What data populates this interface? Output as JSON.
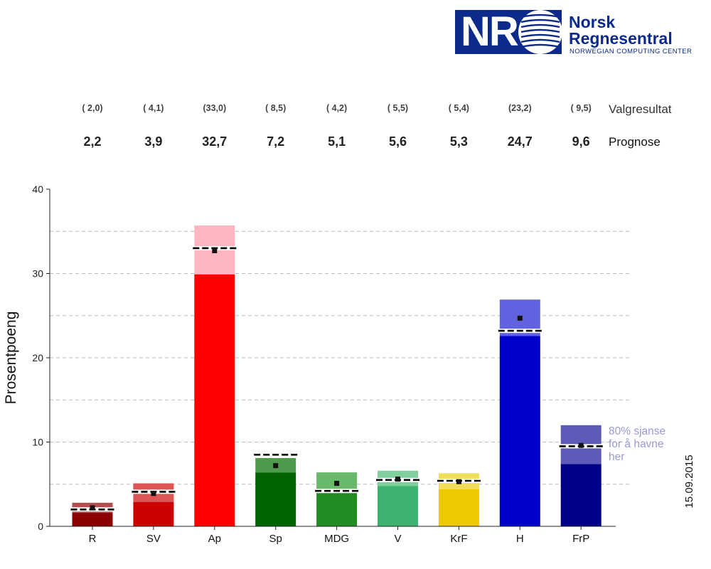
{
  "logo": {
    "mark": "NR",
    "name_line1": "Norsk",
    "name_line2": "Regnesentral",
    "subtitle": "NORWEGIAN COMPUTING CENTER",
    "color": "#0b2a8c"
  },
  "chart_data": {
    "type": "bar",
    "categories": [
      "R",
      "SV",
      "Ap",
      "Sp",
      "MDG",
      "V",
      "KrF",
      "H",
      "FrP"
    ],
    "result_labels": [
      "( 2,0)",
      "( 4,1)",
      "(33,0)",
      "( 8,5)",
      "( 4,2)",
      "( 5,5)",
      "( 5,4)",
      "(23,2)",
      "( 9,5)"
    ],
    "prognosis_labels": [
      "2,2",
      "3,9",
      "32,7",
      "7,2",
      "5,1",
      "5,6",
      "5,3",
      "24,7",
      "9,6"
    ],
    "row_label_result": "Valgresultat",
    "row_label_prognosis": "Prognose",
    "prognosis": [
      2.2,
      3.9,
      32.7,
      7.2,
      5.1,
      5.6,
      5.3,
      24.7,
      9.6
    ],
    "result": [
      2.0,
      4.1,
      33.0,
      8.5,
      4.2,
      5.5,
      5.4,
      23.2,
      9.5
    ],
    "interval_low": [
      1.6,
      2.9,
      29.9,
      6.4,
      4.0,
      4.8,
      4.4,
      22.6,
      7.4
    ],
    "interval_high": [
      2.8,
      5.1,
      35.7,
      8.1,
      6.4,
      6.6,
      6.3,
      26.9,
      12.0
    ],
    "colors_dark": [
      "#8b0000",
      "#cd0000",
      "#ff0000",
      "#006400",
      "#228b22",
      "#3cb371",
      "#eec900",
      "#0000cd",
      "#00008b"
    ],
    "colors_light": [
      "#b05050",
      "#dd5555",
      "#ffb6c1",
      "#4e9a4e",
      "#6ab86a",
      "#7fcf9f",
      "#f2dc5c",
      "#6262e0",
      "#5c5cb8"
    ],
    "ylabel": "Prosentpoeng",
    "y_ticks": [
      0,
      10,
      20,
      30,
      40
    ],
    "ylim": [
      0,
      40
    ],
    "grid": true,
    "annotation": "80% sjanse for å havne her",
    "annotation_lines": [
      "80% sjanse",
      "for å havne",
      "her"
    ],
    "annotation_color": "#9a9ad6",
    "date": "15.09.2015"
  }
}
